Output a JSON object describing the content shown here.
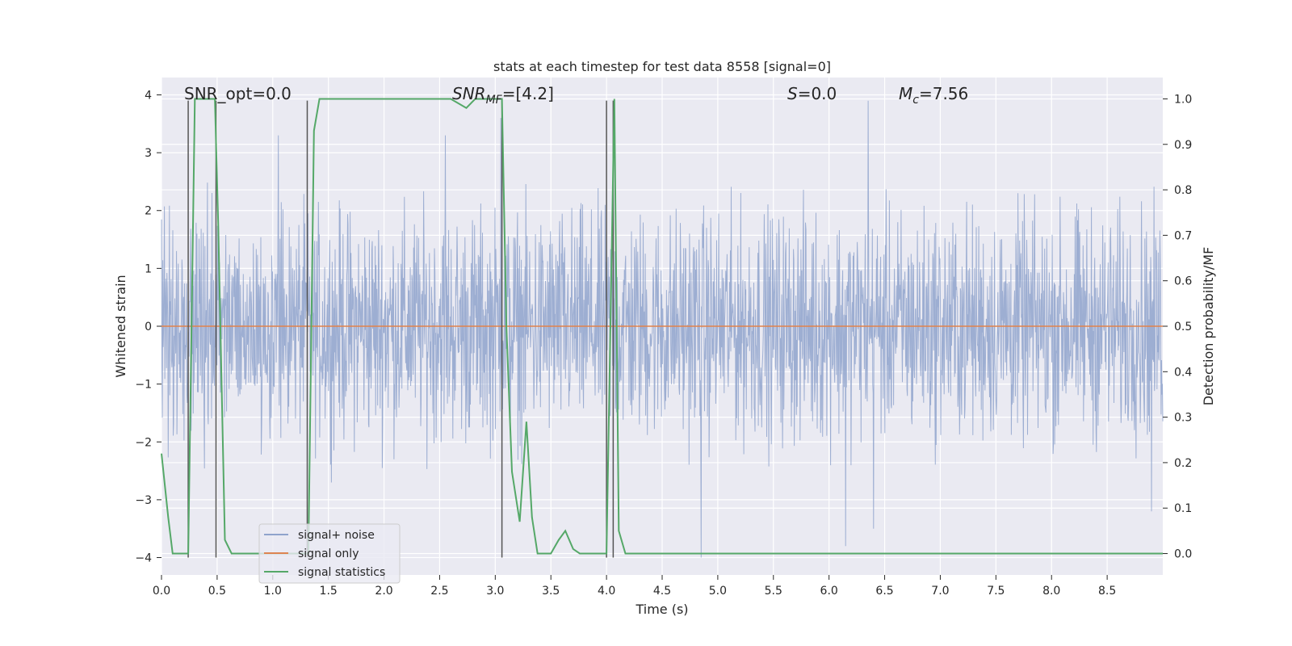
{
  "chart_data": {
    "type": "line",
    "title": "stats at each timestep for test data 8558 [signal=0]",
    "xlabel": "Time (s)",
    "ylabel": "Whitened strain",
    "y2label": "Detection probability/MF",
    "xlim": [
      0,
      9.0
    ],
    "ylim": [
      -4.3,
      4.3
    ],
    "y2lim": [
      -0.047,
      1.047
    ],
    "x_ticks": [
      "0.0",
      "0.5",
      "1.0",
      "1.5",
      "2.0",
      "2.5",
      "3.0",
      "3.5",
      "4.0",
      "4.5",
      "5.0",
      "5.5",
      "6.0",
      "6.5",
      "7.0",
      "7.5",
      "8.0",
      "8.5"
    ],
    "y_ticks": [
      "4",
      "3",
      "2",
      "1",
      "0",
      "−1",
      "−2",
      "−3",
      "−4"
    ],
    "y2_ticks": [
      "1.0",
      "0.9",
      "0.8",
      "0.7",
      "0.6",
      "0.5",
      "0.4",
      "0.3",
      "0.2",
      "0.1",
      "0.0"
    ],
    "grid": true,
    "legend_position": "lower-left",
    "annotations": {
      "snr_opt": "SNR_opt=0.0",
      "snr_mf_symbol": "SNR",
      "snr_mf_sub": "MF",
      "snr_mf_value": "=[4.2]",
      "s_symbol": "S",
      "s_value": "=0.0",
      "mc_symbol": "M",
      "mc_sub": "c",
      "mc_value": "=7.56"
    },
    "series": [
      {
        "name": "signal+ noise",
        "color": "#8fa3cc",
        "axis": "left",
        "description": "whitened strain noise, roughly within -2.5..3.5 with spikes to about 3.9 and -4.0",
        "extremes": [
          [
            1.05,
            3.3
          ],
          [
            2.55,
            3.3
          ],
          [
            3.05,
            3.6
          ],
          [
            6.35,
            3.9
          ],
          [
            6.4,
            -3.5
          ],
          [
            6.15,
            -3.8
          ],
          [
            4.85,
            -4.0
          ],
          [
            8.9,
            -3.2
          ]
        ]
      },
      {
        "name": "signal only",
        "color": "#dd8452",
        "axis": "left",
        "x": [
          0.0,
          9.0
        ],
        "y": [
          0.0,
          0.0
        ]
      },
      {
        "name": "signal statistics",
        "color": "#55a868",
        "axis": "right",
        "x": [
          0.0,
          0.06,
          0.1,
          0.24,
          0.3,
          0.48,
          0.51,
          0.57,
          0.63,
          1.32,
          1.37,
          1.42,
          1.6,
          2.6,
          2.74,
          2.82,
          3.06,
          3.1,
          3.15,
          3.22,
          3.28,
          3.33,
          3.38,
          3.42,
          3.5,
          3.57,
          3.63,
          3.7,
          3.76,
          3.82,
          4.0,
          4.07,
          4.11,
          4.17,
          9.0
        ],
        "y": [
          0.22,
          0.08,
          0.0,
          0.0,
          1.0,
          1.0,
          0.72,
          0.03,
          0.0,
          0.0,
          0.93,
          1.0,
          1.0,
          1.0,
          0.98,
          1.0,
          1.0,
          0.5,
          0.18,
          0.07,
          0.29,
          0.08,
          0.0,
          0.0,
          0.0,
          0.03,
          0.05,
          0.01,
          0.0,
          0.0,
          0.0,
          1.0,
          0.05,
          0.0,
          0.0
        ]
      }
    ],
    "vertical_markers": {
      "color": "#555555",
      "x": [
        0.24,
        0.49,
        1.31,
        3.06,
        4.0,
        4.06
      ],
      "y_top": [
        3.9,
        3.9,
        3.9,
        3.9,
        3.9,
        3.9
      ],
      "y_bottom": [
        -4.0,
        -4.0,
        -4.0,
        -4.0,
        -4.0,
        -4.0
      ]
    }
  }
}
